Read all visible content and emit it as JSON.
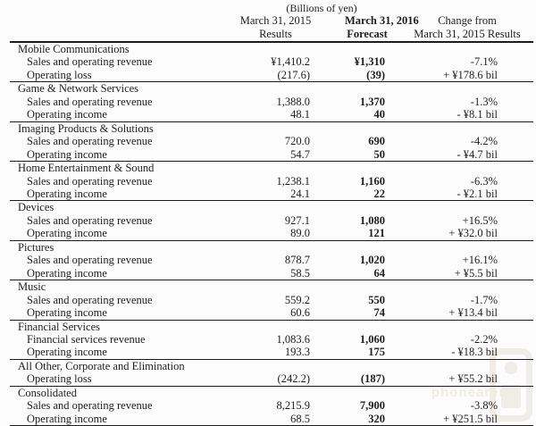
{
  "unit_note": "(Billions of yen)",
  "headers": {
    "results_line1": "March 31, 2015",
    "results_line2": "Results",
    "forecast_line1": "March 31, 2016",
    "forecast_line2": "Forecast",
    "change_line1": "Change from",
    "change_line2": "March 31, 2015 Results"
  },
  "sections": [
    {
      "name": "Mobile Communications",
      "rows": [
        {
          "label": "Sales and operating revenue",
          "results": "¥1,410.2",
          "forecast": "¥1,310",
          "change": "-7.1%"
        },
        {
          "label": "Operating loss",
          "results": "(217.6)",
          "forecast": "(39)",
          "change": "+ ¥178.6 bil"
        }
      ]
    },
    {
      "name": "Game & Network Services",
      "rows": [
        {
          "label": "Sales and operating revenue",
          "results": "1,388.0",
          "forecast": "1,370",
          "change": "-1.3%"
        },
        {
          "label": "Operating income",
          "results": "48.1",
          "forecast": "40",
          "change": "- ¥8.1 bil"
        }
      ]
    },
    {
      "name": "Imaging Products & Solutions",
      "rows": [
        {
          "label": "Sales and operating revenue",
          "results": "720.0",
          "forecast": "690",
          "change": "-4.2%"
        },
        {
          "label": "Operating income",
          "results": "54.7",
          "forecast": "50",
          "change": "- ¥4.7 bil"
        }
      ]
    },
    {
      "name": "Home Entertainment & Sound",
      "rows": [
        {
          "label": "Sales and operating revenue",
          "results": "1,238.1",
          "forecast": "1,160",
          "change": "-6.3%"
        },
        {
          "label": "Operating income",
          "results": "24.1",
          "forecast": "22",
          "change": "- ¥2.1 bil"
        }
      ]
    },
    {
      "name": "Devices",
      "rows": [
        {
          "label": "Sales and operating revenue",
          "results": "927.1",
          "forecast": "1,080",
          "change": "+16.5%"
        },
        {
          "label": "Operating income",
          "results": "89.0",
          "forecast": "121",
          "change": "+ ¥32.0 bil"
        }
      ]
    },
    {
      "name": "Pictures",
      "rows": [
        {
          "label": "Sales and operating revenue",
          "results": "878.7",
          "forecast": "1,020",
          "change": "+16.1%"
        },
        {
          "label": "Operating income",
          "results": "58.5",
          "forecast": "64",
          "change": "+ ¥5.5 bil"
        }
      ]
    },
    {
      "name": "Music",
      "rows": [
        {
          "label": "Sales and operating revenue",
          "results": "559.2",
          "forecast": "550",
          "change": "-1.7%"
        },
        {
          "label": "Operating income",
          "results": "60.6",
          "forecast": "74",
          "change": "+ ¥13.4 bil"
        }
      ]
    },
    {
      "name": "Financial Services",
      "rows": [
        {
          "label": "Financial services revenue",
          "results": "1,083.6",
          "forecast": "1,060",
          "change": "-2.2%"
        },
        {
          "label": "Operating income",
          "results": "193.3",
          "forecast": "175",
          "change": "- ¥18.3 bil"
        }
      ]
    },
    {
      "name": "All Other, Corporate and Elimination",
      "rows": [
        {
          "label": "Operating loss",
          "results": "(242.2)",
          "forecast": "(187)",
          "change": "+ ¥55.2 bil"
        }
      ]
    },
    {
      "name": "Consolidated",
      "rows": [
        {
          "label": "Sales and operating revenue",
          "results": "8,215.9",
          "forecast": "7,900",
          "change": "-3.8%"
        },
        {
          "label": "Operating income",
          "results": "68.5",
          "forecast": "320",
          "change": "+ ¥251.5 bil"
        }
      ]
    }
  ],
  "watermark": {
    "text": "phonearena"
  }
}
